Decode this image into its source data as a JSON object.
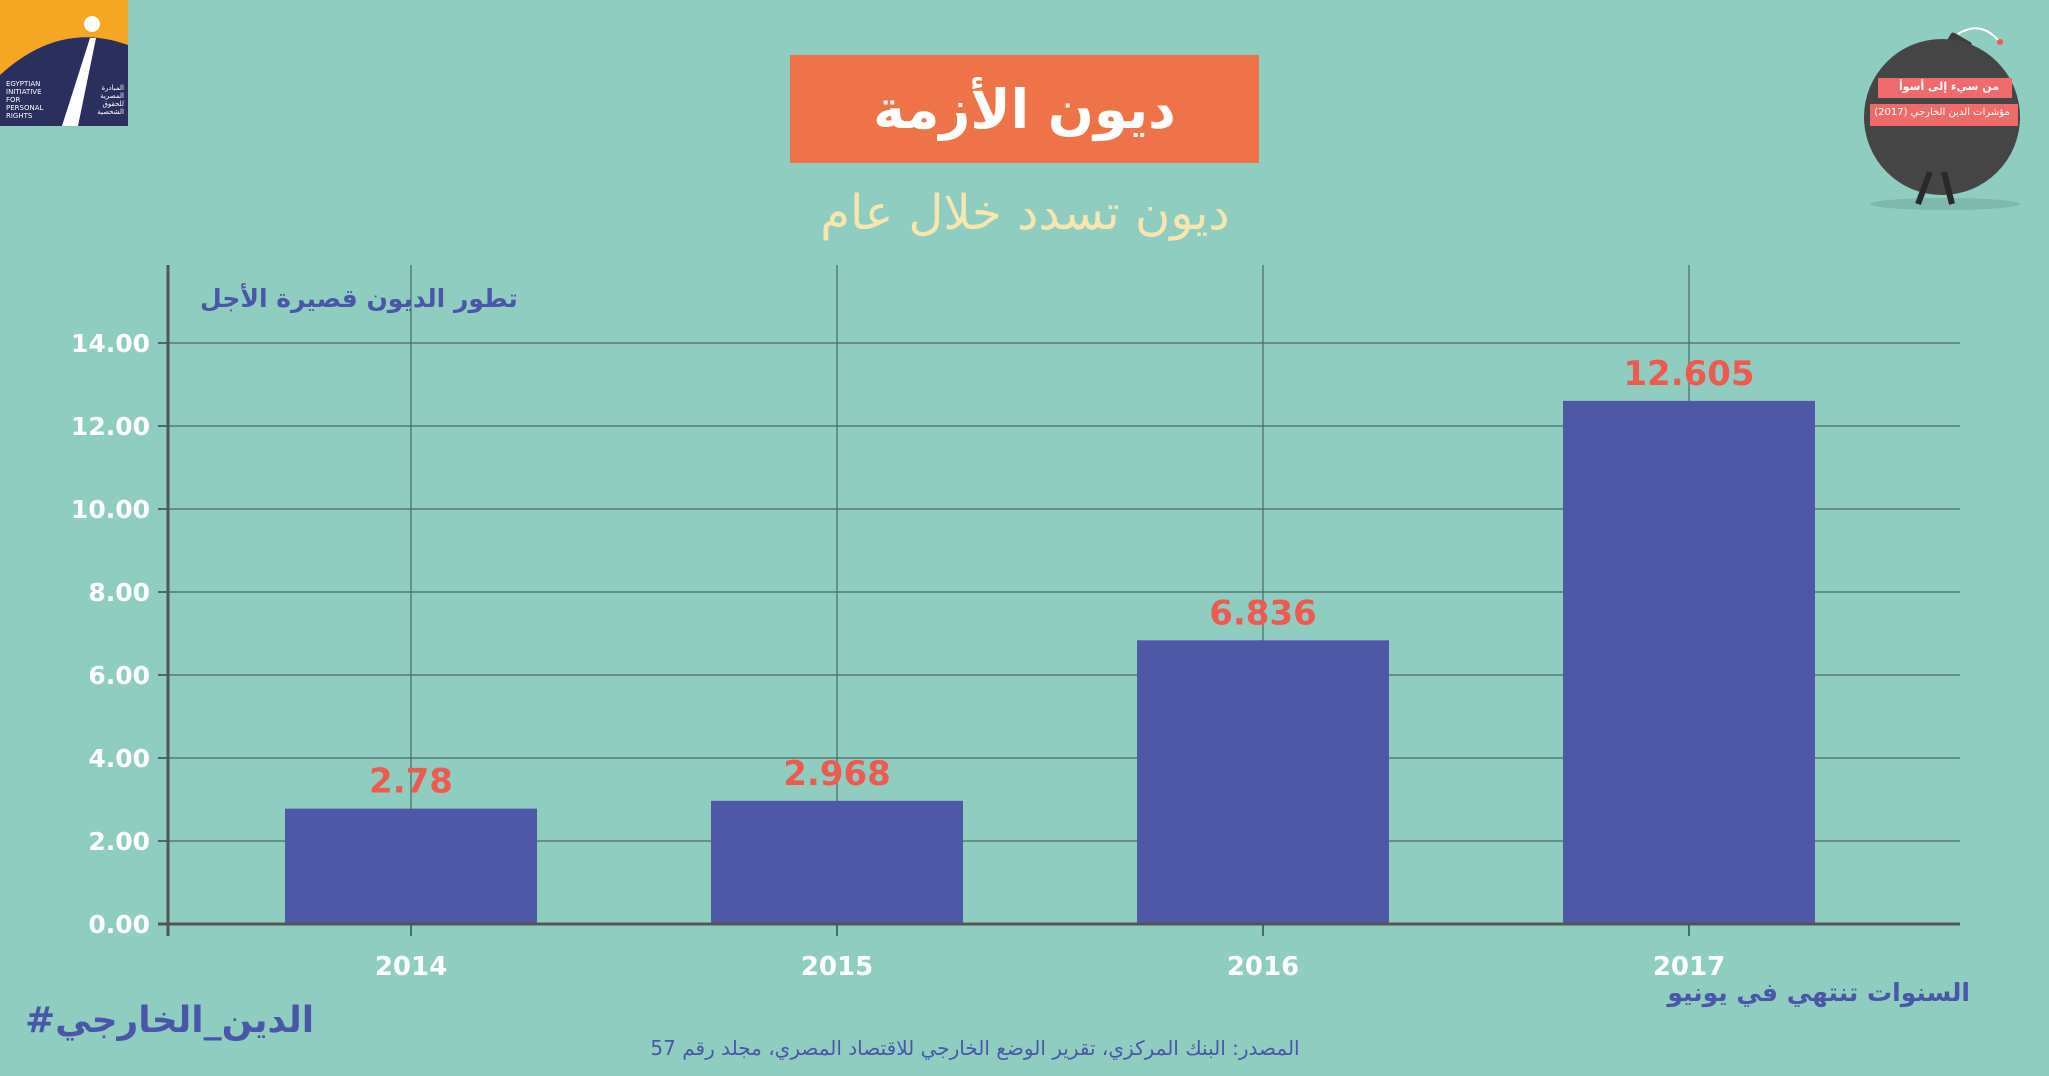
{
  "header": {
    "title": "ديون الأزمة",
    "subtitle": "ديون تسدد خلال عام"
  },
  "logo": {
    "text_en": "EGYPTIAN INITIATIVE FOR PERSONAL RIGHTS",
    "text_ar": "المبادرة المصرية للحقوق الشخصية"
  },
  "badge": {
    "line1": "من سيء إلى أسوأ",
    "line2": "مؤشرات الدين الخارجي (2017)"
  },
  "footer": {
    "hashtag": "#الدين_الخارجي",
    "source": "المصدر: البنك المركزي، تقرير الوضع الخارجي للاقتصاد المصري، مجلد رقم 57"
  },
  "colors": {
    "background": "#8fcdc1",
    "bar": "#4e58a6",
    "data_label": "#ef5a50",
    "title_box": "#ef7349",
    "subtitle": "#f7e6b0",
    "axis_text": "#ffffff",
    "label_text": "#4a57a8",
    "grid": "#4a6a64"
  },
  "chart_data": {
    "type": "bar",
    "title": "تطور الديون قصيرة الأجل",
    "xlabel": "السنوات تنتهي في يونيو",
    "ylabel": "",
    "categories": [
      "2014",
      "2015",
      "2016",
      "2017"
    ],
    "values": [
      2.78,
      2.968,
      6.836,
      12.605
    ],
    "data_labels": [
      "2.78",
      "2.968",
      "6.836",
      "12.605"
    ],
    "ylim": [
      0,
      14
    ],
    "yticks": [
      "0.00",
      "2.00",
      "4.00",
      "6.00",
      "8.00",
      "10.00",
      "12.00",
      "14.00"
    ],
    "grid": true,
    "legend": "none"
  }
}
